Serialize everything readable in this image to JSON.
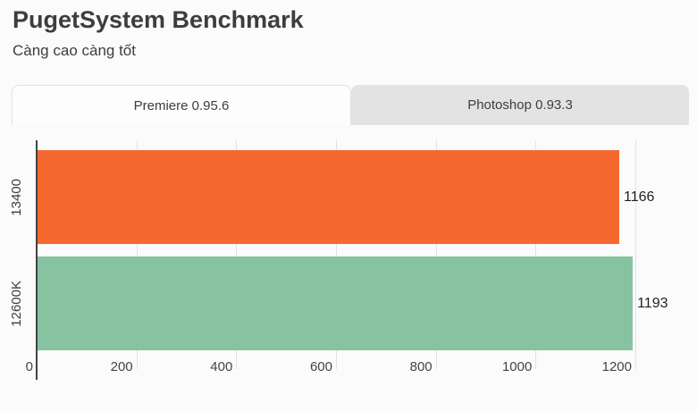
{
  "header": {
    "title": "PugetSystem Benchmark",
    "subtitle": "Càng cao càng tốt"
  },
  "tabs": [
    {
      "label": "Premiere 0.95.6",
      "active": true
    },
    {
      "label": "Photoshop 0.93.3",
      "active": false
    }
  ],
  "chart_data": {
    "type": "bar",
    "orientation": "horizontal",
    "title": "PugetSystem Benchmark",
    "subtitle": "Càng cao càng tốt",
    "categories": [
      "13400",
      "12600K"
    ],
    "values": [
      1166,
      1193
    ],
    "value_labels": [
      "1166",
      "1193"
    ],
    "bar_colors": [
      "#f5682f",
      "#87c3a1"
    ],
    "x_ticks": [
      0,
      200,
      400,
      600,
      800,
      1000,
      1200
    ],
    "xlim": [
      0,
      1200
    ],
    "grid": "vertical-light",
    "legend": "none",
    "colors": {
      "axis": "#424242",
      "gridline": "#e2e2e2",
      "text": "#3d3d3d"
    }
  }
}
